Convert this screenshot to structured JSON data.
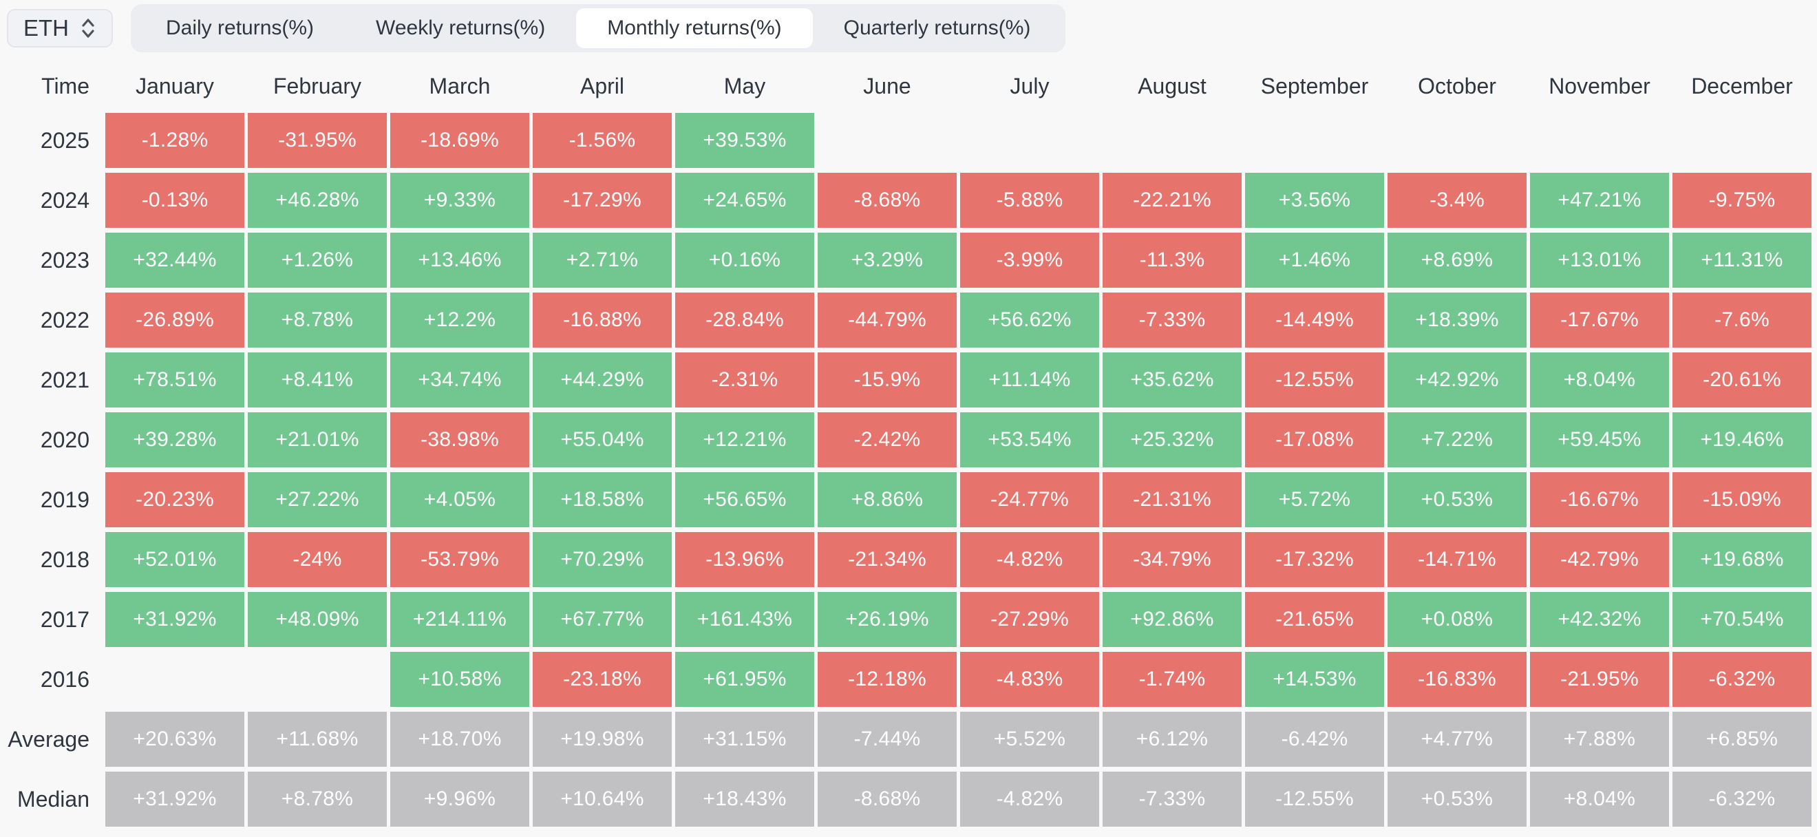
{
  "coin_selector": {
    "label": "ETH"
  },
  "tabs": [
    {
      "label": "Daily returns(%)",
      "active": false
    },
    {
      "label": "Weekly returns(%)",
      "active": false
    },
    {
      "label": "Monthly returns(%)",
      "active": true
    },
    {
      "label": "Quarterly returns(%)",
      "active": false
    }
  ],
  "table": {
    "corner_label": "Time",
    "columns": [
      "January",
      "February",
      "March",
      "April",
      "May",
      "June",
      "July",
      "August",
      "September",
      "October",
      "November",
      "December"
    ],
    "rows": [
      {
        "label": "2025",
        "kind": "year",
        "values": [
          "-1.28%",
          "-31.95%",
          "-18.69%",
          "-1.56%",
          "+39.53%",
          null,
          null,
          null,
          null,
          null,
          null,
          null
        ]
      },
      {
        "label": "2024",
        "kind": "year",
        "values": [
          "-0.13%",
          "+46.28%",
          "+9.33%",
          "-17.29%",
          "+24.65%",
          "-8.68%",
          "-5.88%",
          "-22.21%",
          "+3.56%",
          "-3.4%",
          "+47.21%",
          "-9.75%"
        ]
      },
      {
        "label": "2023",
        "kind": "year",
        "values": [
          "+32.44%",
          "+1.26%",
          "+13.46%",
          "+2.71%",
          "+0.16%",
          "+3.29%",
          "-3.99%",
          "-11.3%",
          "+1.46%",
          "+8.69%",
          "+13.01%",
          "+11.31%"
        ]
      },
      {
        "label": "2022",
        "kind": "year",
        "values": [
          "-26.89%",
          "+8.78%",
          "+12.2%",
          "-16.88%",
          "-28.84%",
          "-44.79%",
          "+56.62%",
          "-7.33%",
          "-14.49%",
          "+18.39%",
          "-17.67%",
          "-7.6%"
        ]
      },
      {
        "label": "2021",
        "kind": "year",
        "values": [
          "+78.51%",
          "+8.41%",
          "+34.74%",
          "+44.29%",
          "-2.31%",
          "-15.9%",
          "+11.14%",
          "+35.62%",
          "-12.55%",
          "+42.92%",
          "+8.04%",
          "-20.61%"
        ]
      },
      {
        "label": "2020",
        "kind": "year",
        "values": [
          "+39.28%",
          "+21.01%",
          "-38.98%",
          "+55.04%",
          "+12.21%",
          "-2.42%",
          "+53.54%",
          "+25.32%",
          "-17.08%",
          "+7.22%",
          "+59.45%",
          "+19.46%"
        ]
      },
      {
        "label": "2019",
        "kind": "year",
        "values": [
          "-20.23%",
          "+27.22%",
          "+4.05%",
          "+18.58%",
          "+56.65%",
          "+8.86%",
          "-24.77%",
          "-21.31%",
          "+5.72%",
          "+0.53%",
          "-16.67%",
          "-15.09%"
        ]
      },
      {
        "label": "2018",
        "kind": "year",
        "values": [
          "+52.01%",
          "-24%",
          "-53.79%",
          "+70.29%",
          "-13.96%",
          "-21.34%",
          "-4.82%",
          "-34.79%",
          "-17.32%",
          "-14.71%",
          "-42.79%",
          "+19.68%"
        ]
      },
      {
        "label": "2017",
        "kind": "year",
        "values": [
          "+31.92%",
          "+48.09%",
          "+214.11%",
          "+67.77%",
          "+161.43%",
          "+26.19%",
          "-27.29%",
          "+92.86%",
          "-21.65%",
          "+0.08%",
          "+42.32%",
          "+70.54%"
        ]
      },
      {
        "label": "2016",
        "kind": "year",
        "values": [
          null,
          null,
          "+10.58%",
          "-23.18%",
          "+61.95%",
          "-12.18%",
          "-4.83%",
          "-1.74%",
          "+14.53%",
          "-16.83%",
          "-21.95%",
          "-6.32%"
        ]
      },
      {
        "label": "Average",
        "kind": "summary",
        "values": [
          "+20.63%",
          "+11.68%",
          "+18.70%",
          "+19.98%",
          "+31.15%",
          "-7.44%",
          "+5.52%",
          "+6.12%",
          "-6.42%",
          "+4.77%",
          "+7.88%",
          "+6.85%"
        ]
      },
      {
        "label": "Median",
        "kind": "summary",
        "values": [
          "+31.92%",
          "+8.78%",
          "+9.96%",
          "+10.64%",
          "+18.43%",
          "-8.68%",
          "-4.82%",
          "-7.33%",
          "-12.55%",
          "+0.53%",
          "+8.04%",
          "-6.32%"
        ]
      }
    ]
  },
  "colors": {
    "positive": "#72c690",
    "negative": "#e7736d",
    "summary": "#c1c1c3",
    "cell_text": "#ffffff",
    "label_text": "#2f3640",
    "page_bg": "#f8f8f9",
    "tabbar_bg": "#ecedf1",
    "active_tab_bg": "#ffffff",
    "coin_box_bg": "#f1f2f5",
    "coin_box_border": "#e3e5e9"
  }
}
